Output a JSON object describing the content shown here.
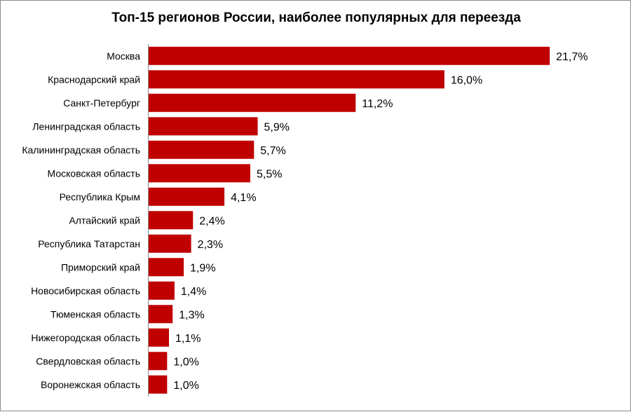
{
  "chart_data": {
    "type": "bar",
    "orientation": "horizontal",
    "title": "Топ-15 регионов России, наиболее популярных для переезда",
    "categories": [
      "Москва",
      "Краснодарский край",
      "Санкт-Петербург",
      "Ленинградская область",
      "Калининградская область",
      "Московская область",
      "Республика Крым",
      "Алтайский край",
      "Республика Татарстан",
      "Приморский край",
      "Новосибирская область",
      "Тюменская область",
      "Нижегородская область",
      "Свердловская область",
      "Воронежская область"
    ],
    "values": [
      21.7,
      16.0,
      11.2,
      5.9,
      5.7,
      5.5,
      4.1,
      2.4,
      2.3,
      1.9,
      1.4,
      1.3,
      1.1,
      1.0,
      1.0
    ],
    "value_labels": [
      "21,7%",
      "16,0%",
      "11,2%",
      "5,9%",
      "5,7%",
      "5,5%",
      "4,1%",
      "2,4%",
      "2,3%",
      "1,9%",
      "1,4%",
      "1,3%",
      "1,1%",
      "1,0%",
      "1,0%"
    ],
    "xlim": [
      0,
      22
    ],
    "grid": false,
    "legend": "none",
    "bar_color": "#c00000"
  }
}
